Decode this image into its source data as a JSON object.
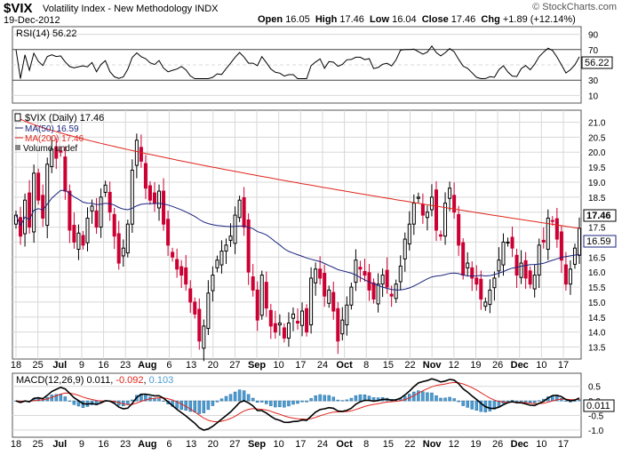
{
  "header": {
    "symbol": "$VIX",
    "name": "Volatility Index - New Methodology  INDX",
    "date": "19-Dec-2012",
    "watermark": "© StockCharts.com",
    "quote": {
      "open_label": "Open",
      "open": "16.05",
      "high_label": "High",
      "high": "17.46",
      "low_label": "Low",
      "low": "16.04",
      "close_label": "Close",
      "close": "17.46",
      "chg_label": "Chg",
      "chg": "+1.89 (+12.14%)"
    }
  },
  "colors": {
    "up": "#000000",
    "down": "#cc0033",
    "ma50": "#1a237e",
    "ma200": "#e0241b",
    "rsi": "#000000",
    "macd": "#000000",
    "signal": "#e0241b",
    "hist": "#4b9cd3",
    "grid": "#d8d8d8",
    "panel_border": "#555555"
  },
  "rsi_panel": {
    "label": "RSI(14) 56.22",
    "ticks": [
      "90",
      "70",
      "50",
      "30",
      "10"
    ],
    "current": "56.22"
  },
  "price_panel": {
    "legend": {
      "main": "$VIX (Daily) 17.46",
      "ma50": "MA(50) 16.59",
      "ma200": "MA(200) 17.46",
      "vol": "Volume undef"
    },
    "ticks": [
      "21.0",
      "20.5",
      "20.0",
      "19.5",
      "19.0",
      "18.5",
      "18.0",
      "17.5",
      "17.0",
      "16.5",
      "16.0",
      "15.5",
      "15.0",
      "14.5",
      "14.0",
      "13.5"
    ],
    "last_close": "17.46",
    "last_ma50": "16.59"
  },
  "macd_panel": {
    "label_prefix": "MACD(12,26,9)",
    "macd": "0.011",
    "signal": "-0.092",
    "hist": "0.103",
    "ticks": [
      "0.5",
      "0.0",
      "-0.5",
      "-1.0"
    ],
    "current": "0.011"
  },
  "x_axis": [
    "18",
    "25",
    "Jul",
    "9",
    "16",
    "23",
    "Aug",
    "6",
    "13",
    "20",
    "27",
    "Sep",
    "10",
    "17",
    "24",
    "Oct",
    "8",
    "15",
    "22",
    "Nov",
    "12",
    "19",
    "26",
    "Dec",
    "10",
    "17"
  ],
  "chart_data": {
    "type": "line",
    "title": "$VIX (Daily) 17.46",
    "ylim": [
      13.1,
      21.4
    ],
    "start_date": "2012-06-14",
    "end_date": "2012-12-19",
    "close": [
      17.9,
      17.2,
      18.4,
      17.5,
      19.3,
      18.4,
      17.8,
      19.6,
      20.1,
      19.8,
      20.0,
      18.7,
      17.4,
      17.0,
      17.3,
      16.9,
      17.8,
      18.2,
      17.5,
      18.5,
      18.9,
      18.0,
      17.2,
      16.3,
      16.8,
      17.6,
      19.4,
      20.4,
      19.7,
      18.8,
      18.4,
      18.3,
      18.7,
      17.6,
      16.9,
      16.5,
      16.1,
      15.9,
      15.6,
      15.0,
      14.6,
      13.7,
      14.2,
      15.3,
      15.9,
      16.4,
      16.7,
      16.9,
      17.2,
      17.9,
      18.4,
      17.5,
      16.0,
      15.4,
      14.4,
      15.9,
      14.8,
      14.2,
      14.0,
      14.3,
      13.8,
      14.3,
      14.6,
      14.3,
      14.7,
      14.0,
      15.8,
      16.1,
      15.8,
      15.2,
      15.4,
      14.7,
      13.7,
      14.4,
      14.9,
      15.5,
      16.4,
      16.1,
      15.9,
      15.4,
      15.1,
      15.6,
      15.9,
      15.5,
      15.2,
      15.6,
      16.2,
      17.1,
      17.6,
      18.3,
      18.5,
      17.9,
      18.0,
      18.5,
      17.4,
      17.2,
      18.3,
      18.8,
      18.0,
      16.9,
      15.9,
      16.3,
      15.8,
      15.6,
      15.1,
      15.0,
      15.4,
      15.8,
      16.4,
      17.0,
      17.0,
      16.8,
      15.9,
      16.3,
      15.8,
      15.6,
      15.9,
      16.9,
      17.0,
      17.8,
      17.7,
      17.1,
      16.4,
      15.6,
      16.1,
      16.8,
      17.46
    ]
  }
}
